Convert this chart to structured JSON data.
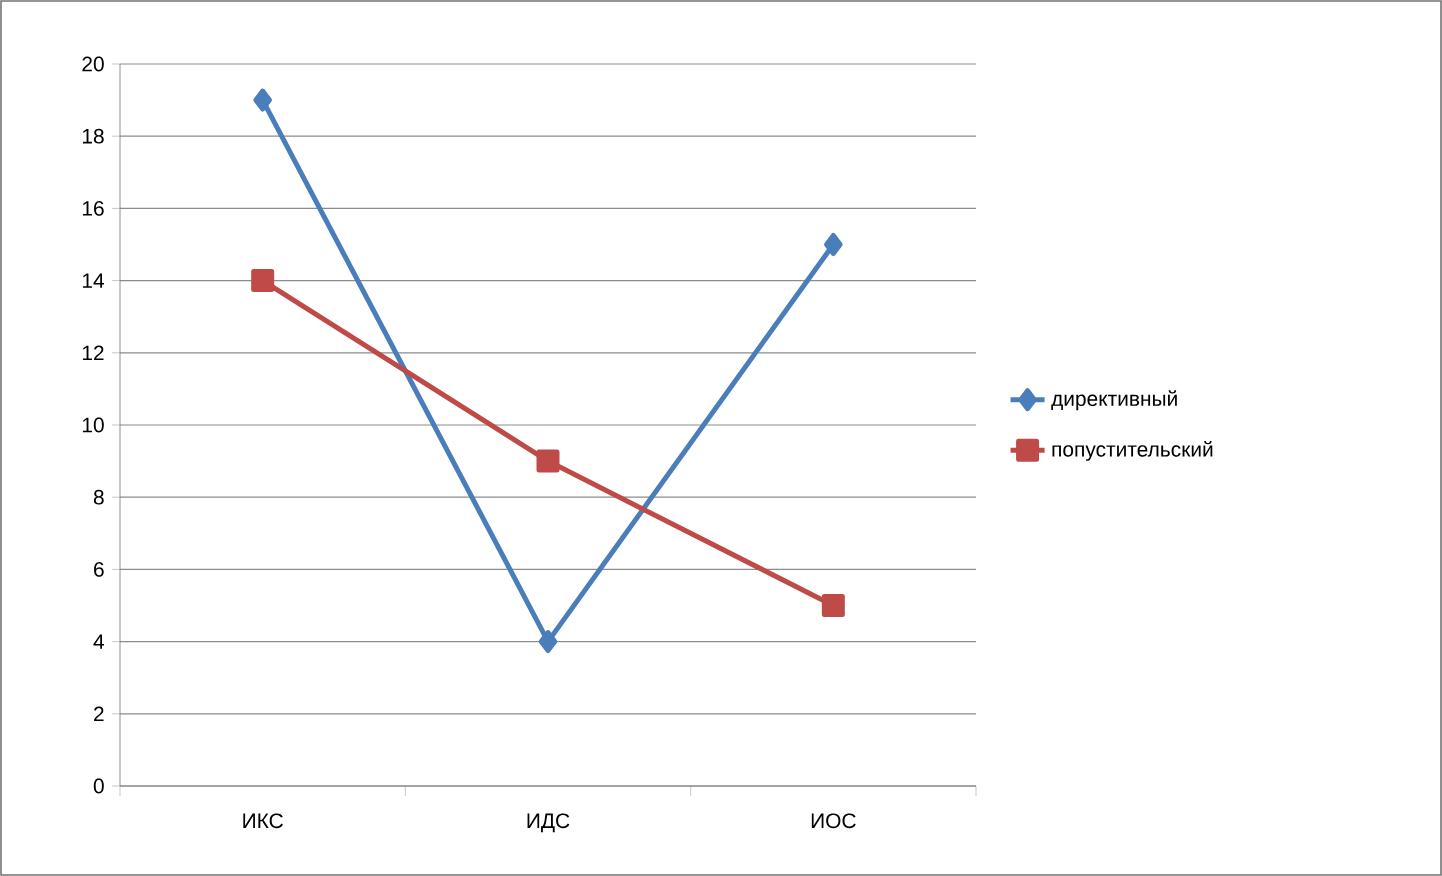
{
  "chart_data": {
    "type": "line",
    "categories": [
      "ИКС",
      "ИДС",
      "ИОС"
    ],
    "series": [
      {
        "name": "директивный",
        "color": "#4a7ebb",
        "values": [
          19,
          4,
          15
        ],
        "marker": "diamond"
      },
      {
        "name": "попустительский",
        "color": "#be4b48",
        "values": [
          14,
          9,
          5
        ],
        "marker": "square"
      }
    ],
    "ylim": [
      0,
      20
    ],
    "yticks": [
      0,
      2,
      4,
      6,
      8,
      10,
      12,
      14,
      16,
      18,
      20
    ],
    "grid": "y",
    "legend": "right"
  }
}
